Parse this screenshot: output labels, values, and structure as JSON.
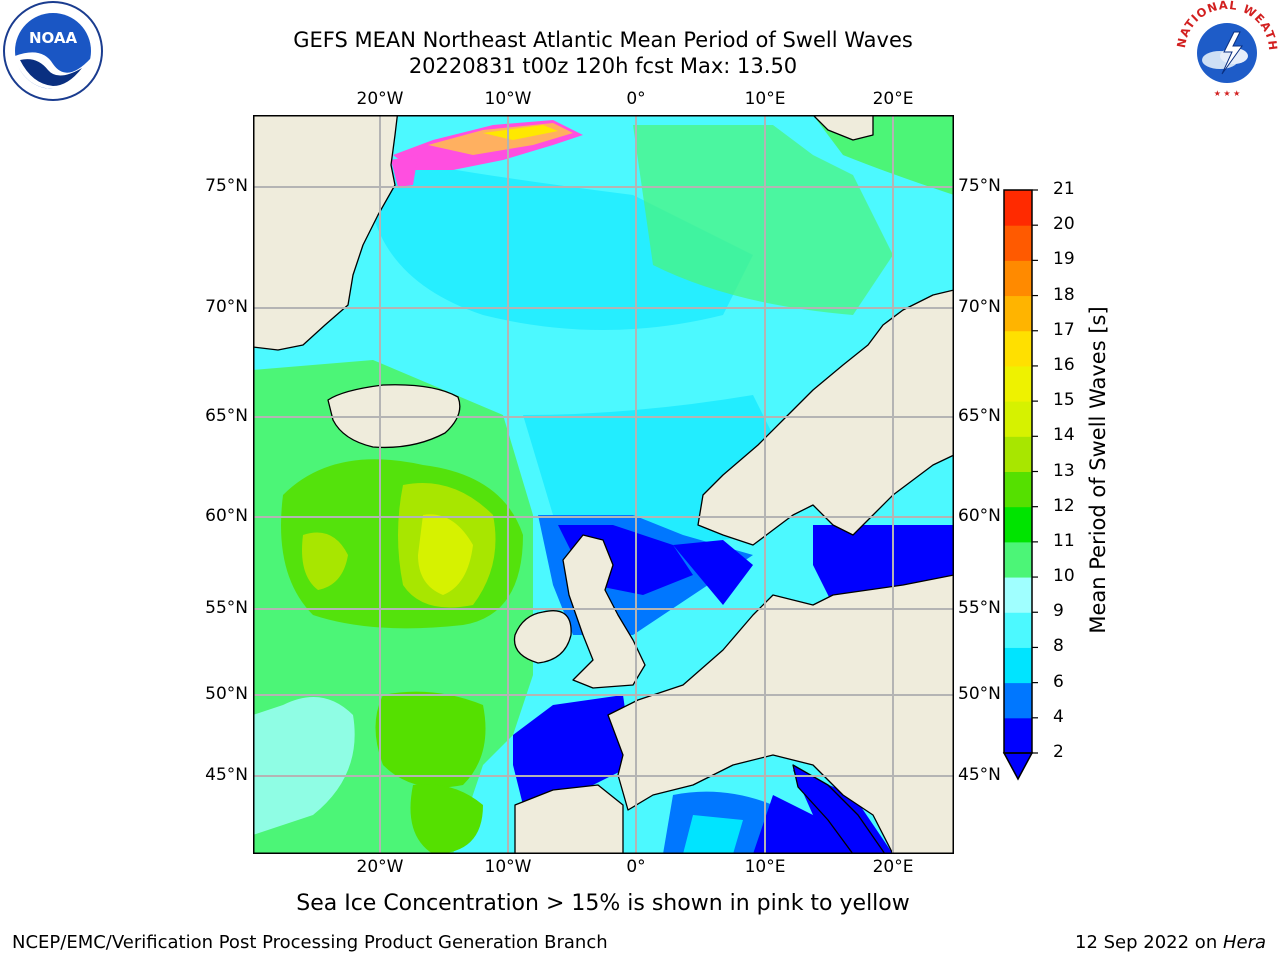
{
  "title": {
    "line1": "GEFS MEAN Northeast Atlantic Mean Period of Swell Waves",
    "line2": "20220831 t00z 120h fcst   Max: 13.50"
  },
  "logos": {
    "left": {
      "text": "NOAA",
      "icon": "noaa-logo"
    },
    "right": {
      "text": "NATIONAL WEATHER SERVICE",
      "icon": "nws-logo"
    }
  },
  "map": {
    "lon_ticks": [
      "20°W",
      "10°W",
      "0°",
      "10°E",
      "20°E"
    ],
    "lat_ticks": [
      "75°N",
      "70°N",
      "65°N",
      "60°N",
      "55°N",
      "50°N",
      "45°N"
    ],
    "lon_range": [
      -30,
      25
    ],
    "lat_range": [
      41,
      78
    ],
    "land_color": "#efecdc",
    "grid_color": "#b4b4b4"
  },
  "colorbar": {
    "title": "Mean Period of Swell Waves [s]",
    "levels": [
      "2",
      "4",
      "6",
      "8",
      "9",
      "10",
      "11",
      "12",
      "13",
      "14",
      "15",
      "16",
      "17",
      "18",
      "19",
      "20",
      "21"
    ],
    "colors": [
      "#0000ff",
      "#0077ff",
      "#00e4ff",
      "#4cf9ff",
      "#a0ffff",
      "#4cf577",
      "#00e400",
      "#55e000",
      "#a8e600",
      "#d6f200",
      "#eef200",
      "#ffe000",
      "#ffb400",
      "#ff8a00",
      "#ff5a00",
      "#ff2a00"
    ]
  },
  "caption": "Sea Ice Concentration > 15% is shown in pink to yellow",
  "footer": {
    "left": "NCEP/EMC/Verification Post Processing Product Generation Branch",
    "date": "12 Sep 2022 on ",
    "host": "Hera"
  }
}
